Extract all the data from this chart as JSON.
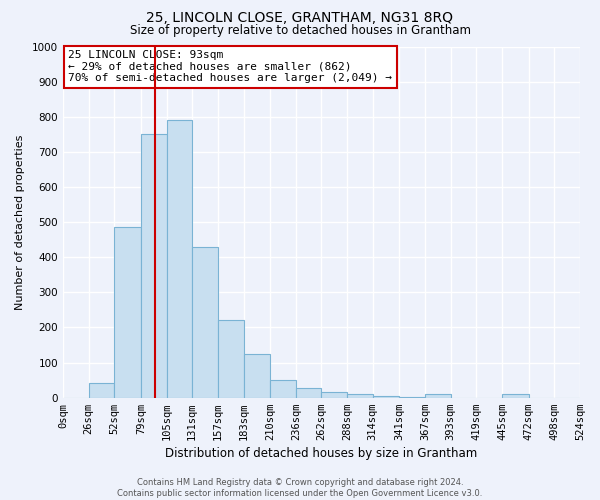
{
  "title": "25, LINCOLN CLOSE, GRANTHAM, NG31 8RQ",
  "subtitle": "Size of property relative to detached houses in Grantham",
  "xlabel": "Distribution of detached houses by size in Grantham",
  "ylabel": "Number of detached properties",
  "footer_line1": "Contains HM Land Registry data © Crown copyright and database right 2024.",
  "footer_line2": "Contains public sector information licensed under the Open Government Licence v3.0.",
  "bin_edges": [
    0,
    26,
    52,
    79,
    105,
    131,
    157,
    183,
    210,
    236,
    262,
    288,
    314,
    341,
    367,
    393,
    419,
    445,
    472,
    498,
    524
  ],
  "bar_heights": [
    0,
    42,
    487,
    750,
    790,
    430,
    220,
    125,
    50,
    28,
    15,
    10,
    5,
    2,
    10,
    0,
    0,
    10,
    0,
    0
  ],
  "bar_color": "#c8dff0",
  "bar_edge_color": "#7ab3d4",
  "property_size": 93,
  "vline_color": "#cc0000",
  "ylim": [
    0,
    1000
  ],
  "yticks": [
    0,
    100,
    200,
    300,
    400,
    500,
    600,
    700,
    800,
    900,
    1000
  ],
  "annotation_text": "25 LINCOLN CLOSE: 93sqm\n← 29% of detached houses are smaller (862)\n70% of semi-detached houses are larger (2,049) →",
  "annotation_box_color": "#ffffff",
  "annotation_box_edge": "#cc0000",
  "background_color": "#eef2fb",
  "plot_bg_color": "#eef2fb",
  "grid_color": "#ffffff"
}
